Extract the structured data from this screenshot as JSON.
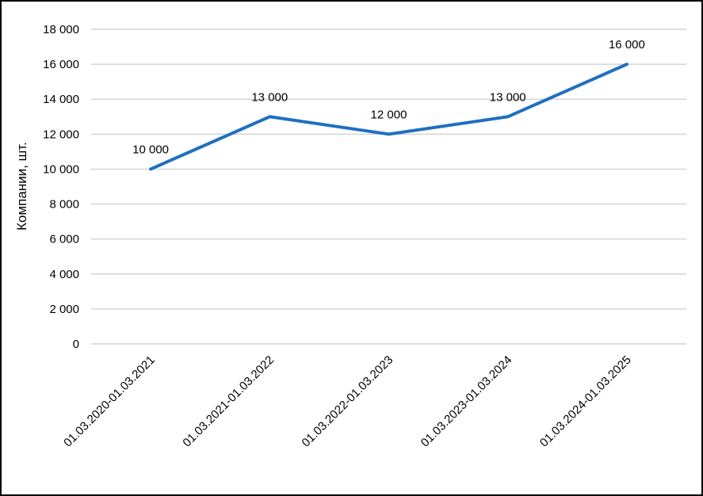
{
  "chart_data": {
    "type": "line",
    "title": "",
    "xlabel": "",
    "ylabel": "Компании, шт.",
    "ylim": [
      0,
      18000
    ],
    "ytick_step": 2000,
    "ytick_labels": [
      "0",
      "2 000",
      "4 000",
      "6 000",
      "8 000",
      "10 000",
      "12 000",
      "14 000",
      "16 000",
      "18 000"
    ],
    "grid": true,
    "legend": "none",
    "line_color": "#1f6fc0",
    "categories": [
      "01.03.2020-01.03.2021",
      "01.03.2021-01.03.2022",
      "01.03.2022-01.03.2023",
      "01.03.2023-01.03.2024",
      "01.03.2024-01.03.2025"
    ],
    "values": [
      10000,
      13000,
      12000,
      13000,
      16000
    ],
    "data_labels": [
      "10 000",
      "13 000",
      "12 000",
      "13 000",
      "16 000"
    ]
  }
}
